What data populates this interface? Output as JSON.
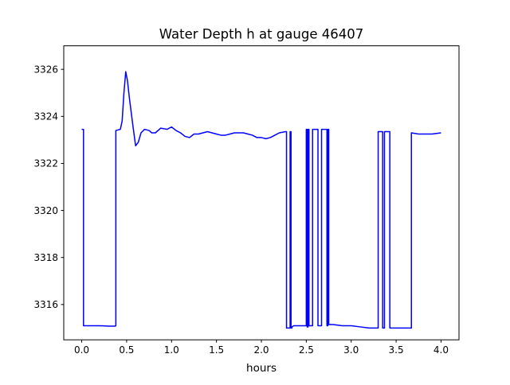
{
  "chart_data": {
    "type": "line",
    "title": "Water Depth h at gauge 46407",
    "xlabel": "hours",
    "ylabel": "",
    "xlim": [
      -0.2,
      4.2
    ],
    "ylim": [
      3314.5,
      3327.0
    ],
    "xticks": [
      0.0,
      0.5,
      1.0,
      1.5,
      2.0,
      2.5,
      3.0,
      3.5,
      4.0
    ],
    "xtick_labels": [
      "0.0",
      "0.5",
      "1.0",
      "1.5",
      "2.0",
      "2.5",
      "3.0",
      "3.5",
      "4.0"
    ],
    "yticks": [
      3316,
      3318,
      3320,
      3322,
      3324,
      3326
    ],
    "ytick_labels": [
      "3316",
      "3318",
      "3320",
      "3322",
      "3324",
      "3326"
    ],
    "grid": false,
    "legend": "none",
    "series": [
      {
        "color": "#0000ff",
        "x": [
          0.0,
          0.02,
          0.02,
          0.1,
          0.2,
          0.3,
          0.37,
          0.38,
          0.38,
          0.43,
          0.45,
          0.47,
          0.49,
          0.51,
          0.53,
          0.57,
          0.6,
          0.63,
          0.66,
          0.7,
          0.75,
          0.78,
          0.82,
          0.88,
          0.95,
          1.0,
          1.05,
          1.1,
          1.15,
          1.2,
          1.25,
          1.3,
          1.35,
          1.4,
          1.45,
          1.5,
          1.55,
          1.6,
          1.65,
          1.7,
          1.75,
          1.8,
          1.85,
          1.9,
          1.95,
          2.0,
          2.05,
          2.1,
          2.15,
          2.2,
          2.27,
          2.28,
          2.28,
          2.32,
          2.32,
          2.33,
          2.33,
          2.34,
          2.34,
          2.36,
          2.4,
          2.45,
          2.5,
          2.5,
          2.51,
          2.51,
          2.52,
          2.52,
          2.53,
          2.53,
          2.57,
          2.57,
          2.63,
          2.63,
          2.67,
          2.67,
          2.73,
          2.73,
          2.74,
          2.74,
          2.75,
          2.75,
          2.8,
          2.9,
          3.0,
          3.1,
          3.2,
          3.3,
          3.3,
          3.35,
          3.35,
          3.37,
          3.37,
          3.43,
          3.43,
          3.55,
          3.66,
          3.67,
          3.67,
          3.75,
          3.9,
          4.0
        ],
        "y": [
          3323.45,
          3323.45,
          3315.1,
          3315.1,
          3315.1,
          3315.08,
          3315.08,
          3315.1,
          3323.4,
          3323.45,
          3323.8,
          3325.0,
          3325.9,
          3325.5,
          3324.8,
          3323.6,
          3322.75,
          3322.9,
          3323.3,
          3323.45,
          3323.4,
          3323.3,
          3323.3,
          3323.5,
          3323.45,
          3323.55,
          3323.4,
          3323.3,
          3323.15,
          3323.1,
          3323.25,
          3323.25,
          3323.3,
          3323.35,
          3323.3,
          3323.25,
          3323.2,
          3323.2,
          3323.25,
          3323.3,
          3323.3,
          3323.3,
          3323.25,
          3323.2,
          3323.1,
          3323.1,
          3323.05,
          3323.1,
          3323.2,
          3323.3,
          3323.35,
          3323.35,
          3315.0,
          3315.0,
          3323.35,
          3323.35,
          3315.0,
          3315.0,
          3315.05,
          3315.1,
          3315.1,
          3315.1,
          3315.1,
          3323.45,
          3323.45,
          3315.05,
          3315.05,
          3323.45,
          3323.45,
          3315.1,
          3315.1,
          3323.45,
          3323.45,
          3315.1,
          3315.1,
          3323.45,
          3323.45,
          3315.1,
          3315.1,
          3323.45,
          3323.45,
          3315.15,
          3315.15,
          3315.1,
          3315.1,
          3315.05,
          3315.0,
          3315.0,
          3323.35,
          3323.35,
          3315.0,
          3315.0,
          3323.35,
          3323.35,
          3315.0,
          3315.0,
          3315.0,
          3315.0,
          3323.3,
          3323.25,
          3323.25,
          3323.3
        ]
      }
    ]
  }
}
